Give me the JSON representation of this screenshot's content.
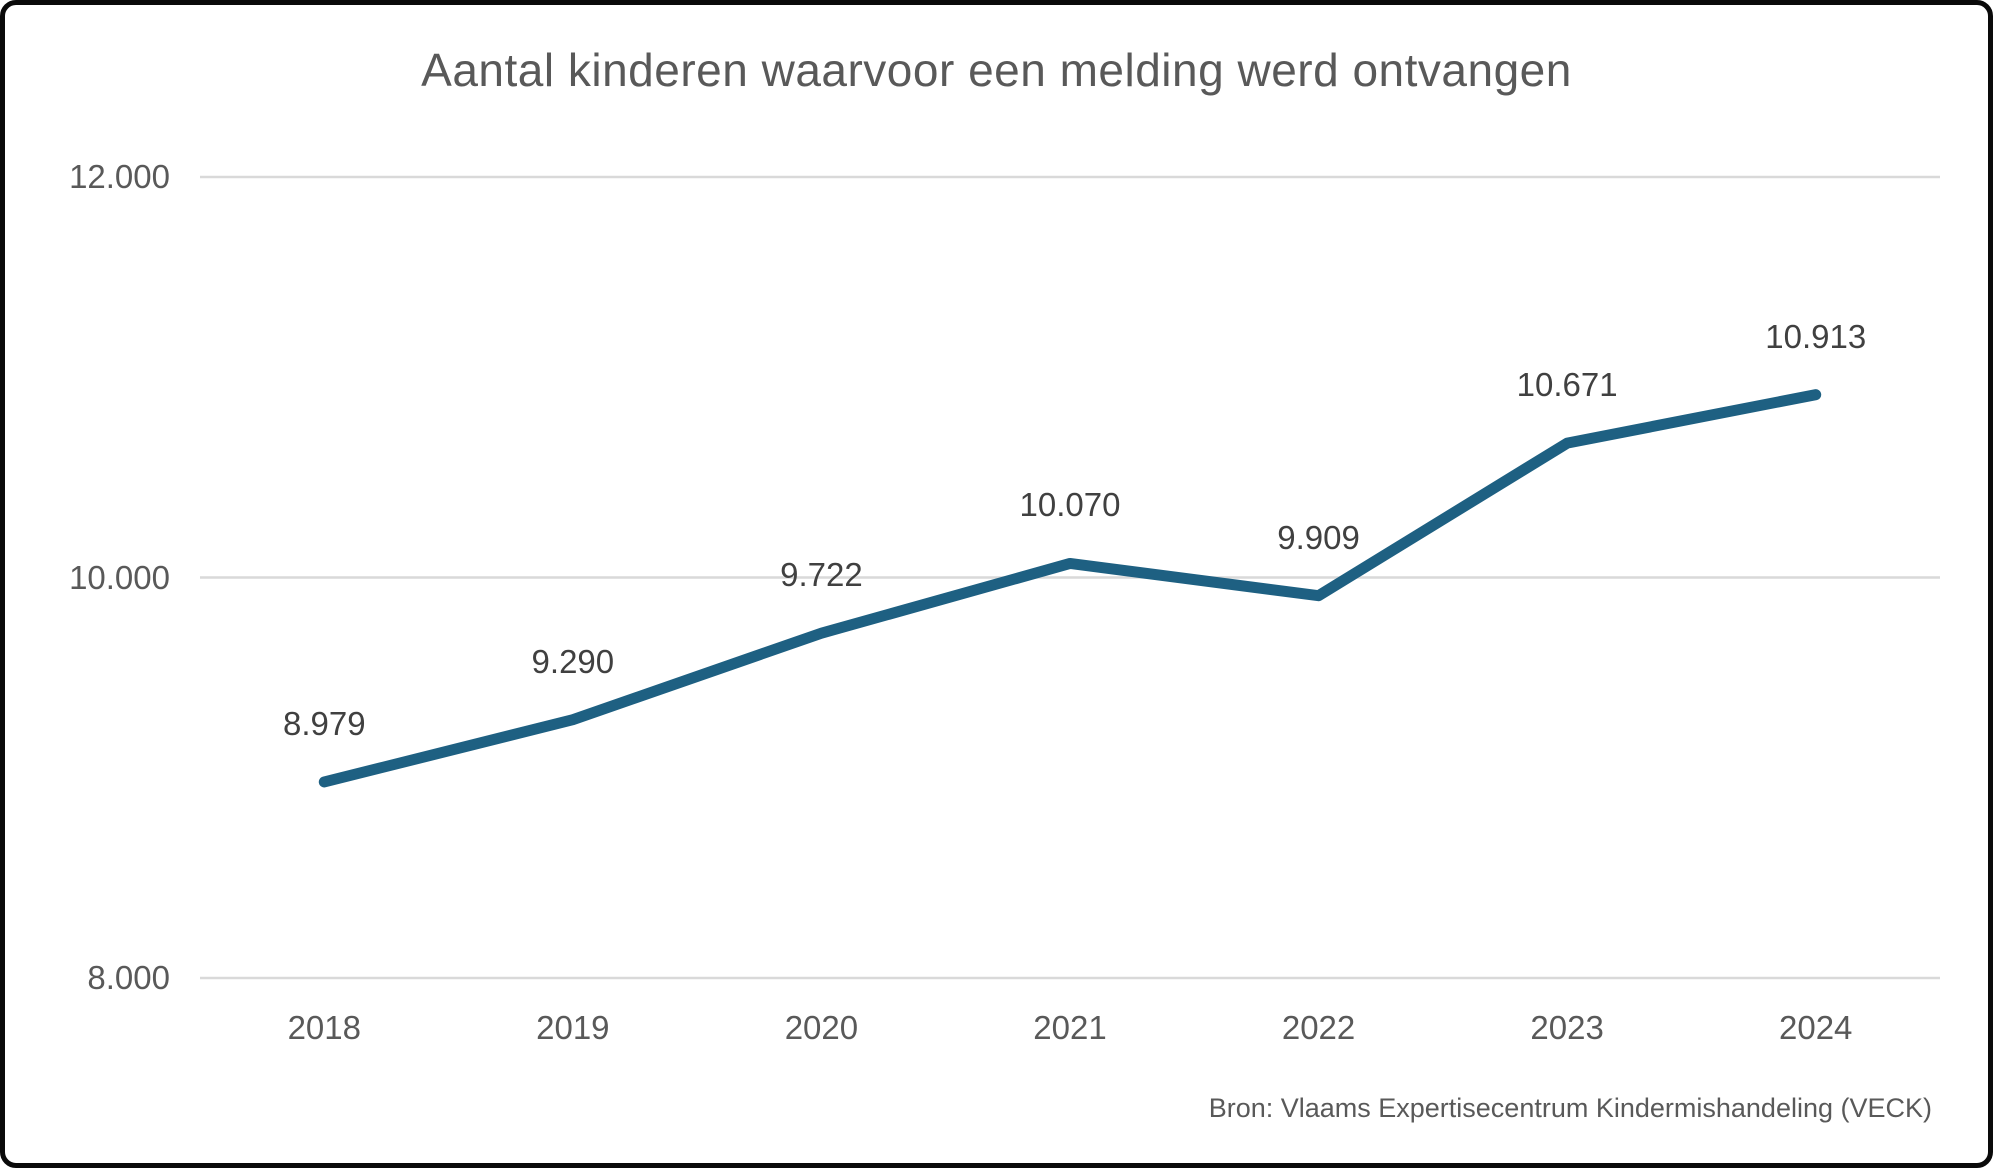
{
  "chart_data": {
    "type": "line",
    "title": "Aantal kinderen waarvoor een melding werd ontvangen",
    "categories": [
      "2018",
      "2019",
      "2020",
      "2021",
      "2022",
      "2023",
      "2024"
    ],
    "values": [
      8979,
      9290,
      9722,
      10070,
      9909,
      10671,
      10913
    ],
    "data_labels": [
      "8.979",
      "9.290",
      "9.722",
      "10.070",
      "9.909",
      "10.671",
      "10.913"
    ],
    "y_ticks": [
      {
        "value": 8000,
        "label": "8.000"
      },
      {
        "value": 10000,
        "label": "10.000"
      },
      {
        "value": 12000,
        "label": "12.000"
      }
    ],
    "ylim": [
      8000,
      12000
    ],
    "grid": "horizontal-only",
    "legend": "none",
    "line_color": "#1E6082",
    "gridline_color": "#D9D9D9"
  },
  "source": {
    "text": "Bron: Vlaams Expertisecentrum Kindermishandeling (VECK)"
  }
}
